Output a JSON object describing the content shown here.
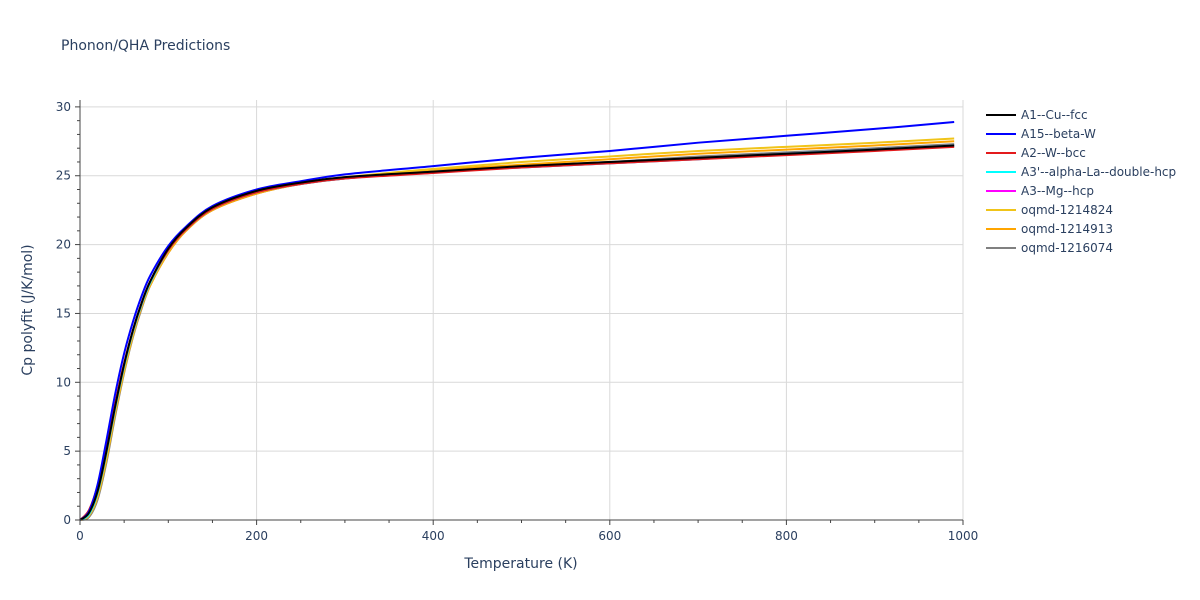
{
  "chart_data": {
    "type": "line",
    "title": "Phonon/QHA Predictions",
    "xlabel": "Temperature (K)",
    "ylabel": "Cp polyfit (J/K/mol)",
    "xlim": [
      0,
      1000
    ],
    "ylim": [
      0,
      30.5
    ],
    "x_ticks": [
      0,
      200,
      400,
      600,
      800,
      1000
    ],
    "x_tick_labels": [
      "0",
      "200",
      "400",
      "600",
      "800",
      "1000"
    ],
    "y_ticks": [
      0,
      5,
      10,
      15,
      20,
      25,
      30
    ],
    "y_tick_labels": [
      "0",
      "5",
      "10",
      "15",
      "20",
      "25",
      "30"
    ],
    "grid": true,
    "legend_position": "right",
    "x": [
      0,
      10,
      20,
      30,
      40,
      50,
      60,
      70,
      80,
      100,
      120,
      150,
      200,
      250,
      300,
      400,
      500,
      600,
      700,
      800,
      900,
      990
    ],
    "series": [
      {
        "name": "A1--Cu--fcc",
        "color": "#000000",
        "values": [
          0,
          0.5,
          2.1,
          5.0,
          8.3,
          11.3,
          13.8,
          15.8,
          17.4,
          19.7,
          21.2,
          22.7,
          23.9,
          24.5,
          24.9,
          25.3,
          25.7,
          26.0,
          26.3,
          26.6,
          26.9,
          27.2
        ]
      },
      {
        "name": "A15--beta-W",
        "color": "#0000ff",
        "values": [
          0,
          0.6,
          2.6,
          5.8,
          9.2,
          12.1,
          14.4,
          16.3,
          17.8,
          19.9,
          21.3,
          22.8,
          24.0,
          24.6,
          25.1,
          25.7,
          26.3,
          26.8,
          27.4,
          27.9,
          28.4,
          28.9
        ]
      },
      {
        "name": "A2--W--bcc",
        "color": "#e31a1c",
        "values": [
          0,
          0.7,
          2.5,
          5.3,
          8.5,
          11.4,
          13.8,
          15.8,
          17.4,
          19.6,
          21.1,
          22.6,
          23.8,
          24.4,
          24.8,
          25.2,
          25.6,
          25.9,
          26.2,
          26.5,
          26.8,
          27.1
        ]
      },
      {
        "name": "A3'--alpha-La--double-hcp",
        "color": "#00ffff",
        "values": [
          0,
          0.4,
          2.0,
          4.9,
          8.2,
          11.2,
          13.7,
          15.7,
          17.3,
          19.6,
          21.1,
          22.6,
          23.8,
          24.4,
          24.8,
          25.3,
          25.6,
          25.9,
          26.2,
          26.6,
          26.9,
          27.2
        ]
      },
      {
        "name": "A3--Mg--hcp",
        "color": "#ff00ff",
        "values": [
          0,
          0.4,
          2.0,
          4.9,
          8.2,
          11.2,
          13.7,
          15.7,
          17.3,
          19.6,
          21.1,
          22.6,
          23.8,
          24.4,
          24.8,
          25.3,
          25.6,
          25.9,
          26.2,
          26.6,
          26.9,
          27.2
        ]
      },
      {
        "name": "oqmd-1214824",
        "color": "#f0c419",
        "values": [
          0,
          0.3,
          1.7,
          4.5,
          7.9,
          10.9,
          13.5,
          15.6,
          17.2,
          19.5,
          21.1,
          22.6,
          23.8,
          24.5,
          24.9,
          25.5,
          26.0,
          26.4,
          26.8,
          27.1,
          27.4,
          27.7
        ]
      },
      {
        "name": "oqmd-1214913",
        "color": "#ffa500",
        "values": [
          0,
          0.3,
          1.7,
          4.4,
          7.8,
          10.8,
          13.4,
          15.5,
          17.1,
          19.4,
          21.0,
          22.5,
          23.7,
          24.4,
          24.8,
          25.4,
          25.8,
          26.2,
          26.6,
          26.9,
          27.2,
          27.5
        ]
      },
      {
        "name": "oqmd-1216074",
        "color": "#808080",
        "values": [
          0,
          0.2,
          1.5,
          4.2,
          7.6,
          10.7,
          13.3,
          15.4,
          17.1,
          19.4,
          21.0,
          22.5,
          23.7,
          24.4,
          24.8,
          25.3,
          25.7,
          26.0,
          26.4,
          26.7,
          27.0,
          27.3
        ]
      }
    ]
  }
}
